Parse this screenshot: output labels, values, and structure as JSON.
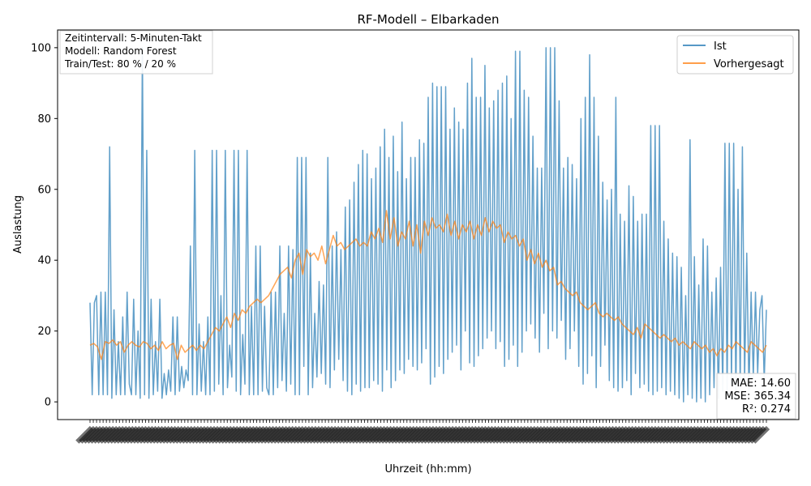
{
  "chart_data": {
    "type": "line",
    "title": "RF-Modell – Elbarkaden",
    "xlabel": "Uhrzeit (hh:mm)",
    "ylabel": "Auslastung",
    "ylim": [
      -5,
      105
    ],
    "yticks": [
      0,
      20,
      40,
      60,
      80,
      100
    ],
    "grid": false,
    "legend_position": "top-right",
    "colors": {
      "ist": "#1f77b4",
      "vorhergesagt": "#ff7f0e"
    },
    "series": [
      {
        "name": "Ist",
        "values": [
          28,
          2,
          28,
          30,
          2,
          31,
          2,
          31,
          2,
          72,
          1,
          26,
          2,
          17,
          2,
          24,
          2,
          31,
          5,
          2,
          29,
          2,
          20,
          1,
          100,
          2,
          71,
          1,
          29,
          2,
          17,
          3,
          29,
          1,
          8,
          2,
          9,
          3,
          24,
          2,
          24,
          3,
          10,
          4,
          9,
          6,
          44,
          2,
          71,
          2,
          22,
          3,
          17,
          2,
          24,
          2,
          71,
          3,
          71,
          5,
          30,
          2,
          71,
          4,
          16,
          7,
          71,
          3,
          71,
          2,
          19,
          5,
          71,
          2,
          27,
          2,
          44,
          2,
          44,
          3,
          27,
          4,
          2,
          31,
          2,
          31,
          4,
          44,
          6,
          25,
          3,
          44,
          5,
          43,
          2,
          69,
          2,
          69,
          10,
          69,
          2,
          42,
          4,
          25,
          7,
          34,
          8,
          33,
          5,
          69,
          4,
          44,
          9,
          48,
          12,
          43,
          6,
          55,
          3,
          57,
          2,
          62,
          5,
          67,
          3,
          71,
          4,
          70,
          4,
          63,
          6,
          66,
          5,
          72,
          3,
          77,
          9,
          69,
          4,
          75,
          6,
          65,
          9,
          79,
          8,
          63,
          12,
          69,
          10,
          69,
          9,
          74,
          11,
          73,
          15,
          86,
          5,
          90,
          7,
          89,
          10,
          89,
          8,
          89,
          12,
          77,
          14,
          83,
          16,
          79,
          9,
          77,
          20,
          90,
          11,
          97,
          10,
          86,
          13,
          86,
          15,
          95,
          18,
          83,
          20,
          85,
          15,
          88,
          17,
          90,
          10,
          92,
          12,
          80,
          16,
          99,
          10,
          99,
          14,
          88,
          20,
          86,
          22,
          75,
          18,
          66,
          14,
          66,
          25,
          100,
          15,
          100,
          20,
          100,
          18,
          85,
          23,
          66,
          12,
          69,
          15,
          67,
          20,
          63,
          10,
          80,
          5,
          86,
          8,
          98,
          13,
          86,
          4,
          75,
          10,
          62,
          16,
          57,
          6,
          60,
          4,
          86,
          3,
          53,
          4,
          51,
          6,
          61,
          2,
          58,
          8,
          51,
          4,
          53,
          5,
          53,
          3,
          78,
          2,
          78,
          3,
          78,
          4,
          51,
          2,
          46,
          3,
          42,
          2,
          41,
          1,
          38,
          0,
          30,
          2,
          74,
          1,
          41,
          0,
          33,
          1,
          46,
          0,
          44,
          2,
          31,
          4,
          35,
          1,
          38,
          3,
          73,
          2,
          73,
          5,
          73,
          1,
          60,
          4,
          72,
          6,
          42,
          3,
          31,
          7,
          31,
          8,
          26,
          30,
          6,
          26
        ]
      },
      {
        "name": "Vorhergesagt",
        "values": [
          16,
          16.5,
          15.5,
          12,
          17,
          16.5,
          17.5,
          16,
          17,
          14,
          16,
          17,
          16,
          15.5,
          17,
          16.5,
          15,
          16,
          14.5,
          17,
          15,
          16,
          16.5,
          12,
          16,
          14,
          15,
          16,
          14.5,
          16,
          15,
          17,
          19,
          21,
          20,
          22,
          24,
          21,
          25,
          23,
          26,
          25,
          27,
          28,
          29,
          28,
          29,
          30,
          32,
          34,
          36,
          37,
          38,
          35,
          40,
          42,
          36,
          43,
          41,
          42,
          40,
          44,
          39,
          43,
          47,
          44,
          45,
          43,
          44,
          45,
          46,
          44,
          45,
          44,
          48,
          46,
          49,
          45,
          54,
          46,
          52,
          44,
          48,
          46,
          51,
          44,
          50,
          42,
          51,
          47,
          52,
          49,
          50,
          48,
          53,
          47,
          51,
          46,
          50,
          48,
          51,
          46,
          50,
          47,
          52,
          48,
          51,
          49,
          50,
          45,
          48,
          46,
          47,
          44,
          46,
          40,
          43,
          39,
          42,
          38,
          40,
          37,
          38,
          33,
          34,
          32,
          31,
          30,
          31,
          28,
          27,
          26,
          27,
          28,
          25,
          24,
          25,
          24,
          23,
          24,
          22,
          21,
          20,
          19,
          21,
          18,
          22,
          21,
          20,
          19,
          18,
          19,
          18,
          17,
          18,
          16,
          17,
          16,
          15,
          17,
          16,
          15,
          16,
          14,
          15,
          13,
          15,
          14,
          16,
          15,
          17,
          16,
          15,
          14,
          17,
          16,
          15,
          14,
          16
        ]
      }
    ],
    "legend": [
      "Ist",
      "Vorhergesagt"
    ],
    "info_box": [
      "Zeitintervall: 5-Minuten-Takt",
      "Modell: Random Forest",
      "Train/Test: 80 % / 20 %"
    ],
    "metrics": [
      "MAE: 14.60",
      "MSE: 365.34",
      "R²: 0.274"
    ]
  }
}
